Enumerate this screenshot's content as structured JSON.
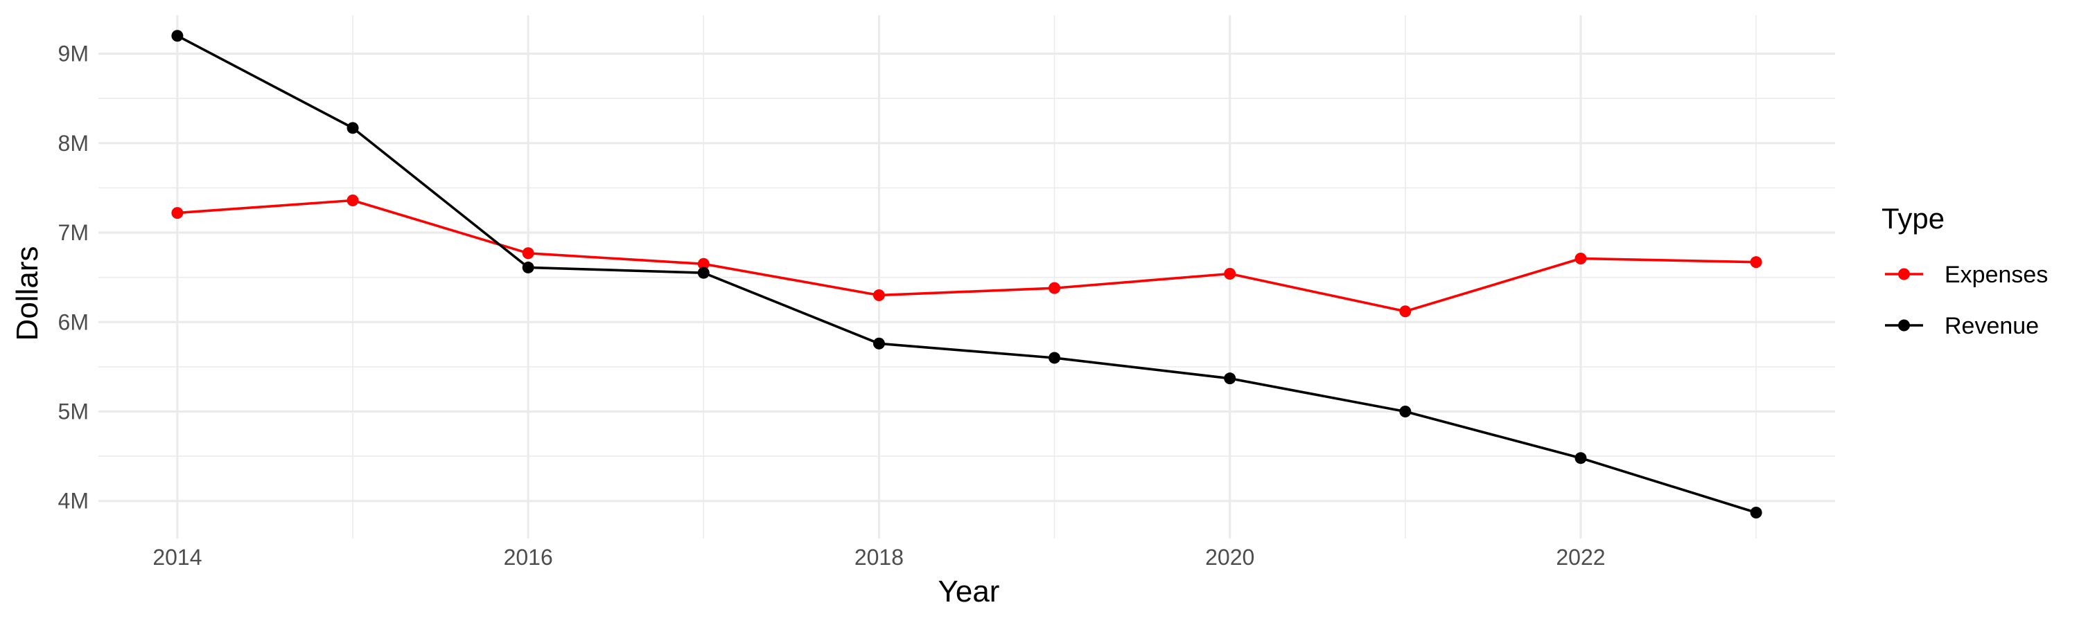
{
  "chart_data": {
    "type": "line",
    "xlabel": "Year",
    "ylabel": "Dollars",
    "x": [
      2014,
      2015,
      2016,
      2017,
      2018,
      2019,
      2020,
      2021,
      2022,
      2023
    ],
    "x_ticks": [
      2014,
      2016,
      2018,
      2020,
      2022
    ],
    "x_tick_labels": [
      "2014",
      "2016",
      "2018",
      "2020",
      "2022"
    ],
    "xlim": [
      2013.55,
      2023.45
    ],
    "y_ticks": [
      4000000,
      5000000,
      6000000,
      7000000,
      8000000,
      9000000
    ],
    "y_tick_labels": [
      "4M",
      "5M",
      "6M",
      "7M",
      "8M",
      "9M"
    ],
    "ylim": [
      3580000,
      9430000
    ],
    "grid": true,
    "legend": {
      "title": "Type",
      "position": "right"
    },
    "series": [
      {
        "name": "Expenses",
        "color": "#ff0000",
        "values": [
          7220000,
          7360000,
          6770000,
          6650000,
          6300000,
          6380000,
          6540000,
          6120000,
          6710000,
          6670000
        ]
      },
      {
        "name": "Revenue",
        "color": "#000000",
        "values": [
          9200000,
          8170000,
          6610000,
          6550000,
          5760000,
          5600000,
          5370000,
          5000000,
          4480000,
          3870000
        ]
      }
    ]
  }
}
